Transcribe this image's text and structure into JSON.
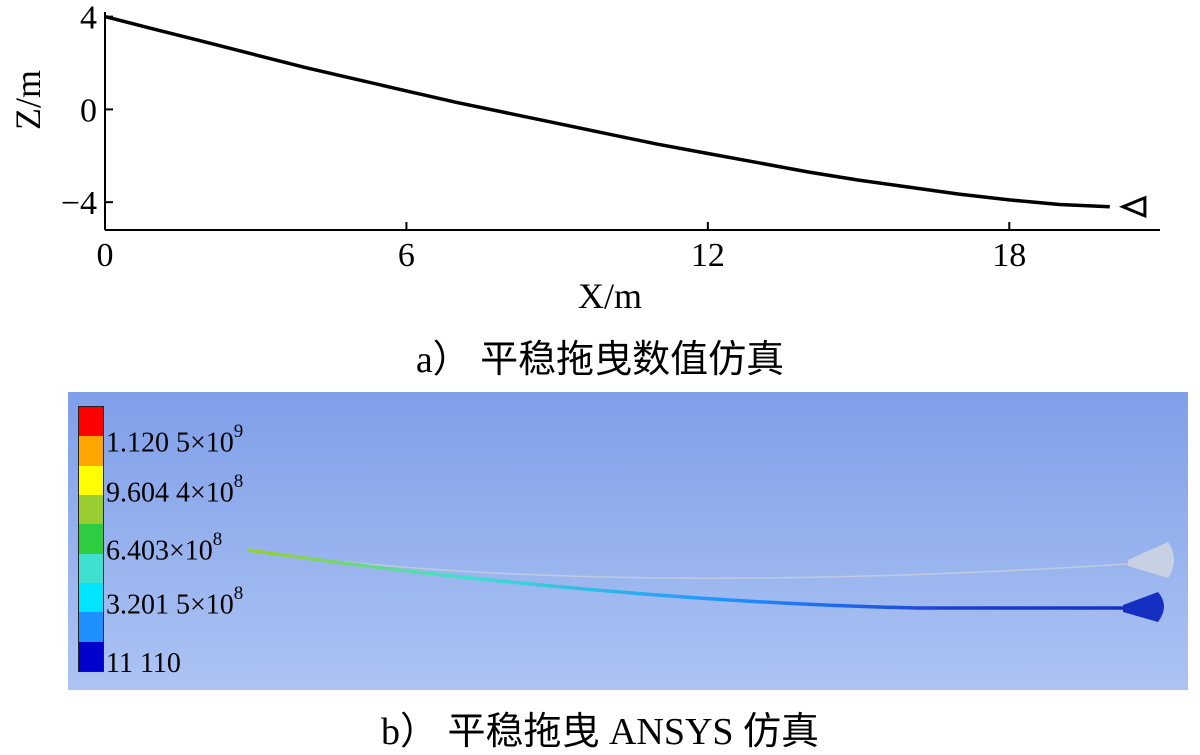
{
  "chart_data": {
    "type": "line",
    "title": "",
    "xlabel": "X/m",
    "ylabel": "Z/m",
    "xlim": [
      0,
      21
    ],
    "ylim": [
      -5.2,
      4.2
    ],
    "xticks": [
      "0",
      "6",
      "12",
      "18"
    ],
    "yticks": [
      "4",
      "0",
      "−4"
    ],
    "grid": false,
    "series": [
      {
        "x": [
          0,
          1,
          2,
          3,
          4,
          5,
          6,
          7,
          8,
          9,
          10,
          11,
          12,
          13,
          14,
          15,
          16,
          17,
          18,
          19,
          20
        ],
        "y": [
          4.0,
          3.45,
          2.9,
          2.35,
          1.8,
          1.3,
          0.8,
          0.3,
          -0.15,
          -0.6,
          -1.05,
          -1.5,
          -1.9,
          -2.3,
          -2.7,
          -3.05,
          -3.35,
          -3.65,
          -3.9,
          -4.1,
          -4.2
        ]
      }
    ],
    "end_marker": {
      "shape": "triangle-left",
      "x": 20.5,
      "y": -4.2
    }
  },
  "captions": {
    "a": "a） 平稳拖曳数值仿真",
    "b": "b） 平稳拖曳 ANSYS 仿真"
  },
  "ansys": {
    "legend": [
      {
        "mantissa": "1.120 5×10",
        "exp": "9"
      },
      {
        "mantissa": "9.604 4×10",
        "exp": "8"
      },
      {
        "mantissa": "6.403×10",
        "exp": "8"
      },
      {
        "mantissa": "3.201 5×10",
        "exp": "8"
      },
      {
        "mantissa": "11 110",
        "exp": ""
      }
    ],
    "legend_colors": [
      "#ff0000",
      "#ffa500",
      "#ffff00",
      "#9acd32",
      "#2ecc40",
      "#40e0d0",
      "#00e5ff",
      "#1e90ff",
      "#0000cd"
    ],
    "colors": {
      "background_top": "#7f9fe9",
      "background_bottom": "#adc3f3",
      "cable": "#1f3fd0",
      "ghost": "#c8d0dc"
    }
  }
}
